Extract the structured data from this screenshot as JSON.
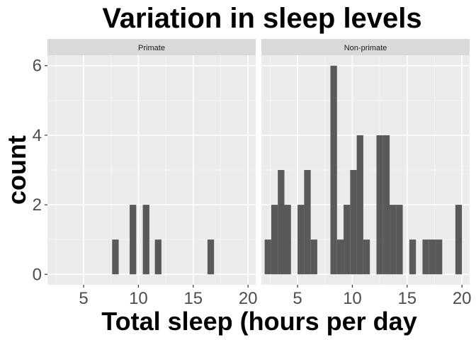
{
  "chart_data": {
    "type": "bar",
    "title": "Variation in sleep levels",
    "xlabel": "Total sleep (hours per day",
    "ylabel": "count",
    "xlim": [
      1.7,
      20.7
    ],
    "ylim": [
      -0.3,
      6.3
    ],
    "x_ticks": [
      5,
      10,
      15,
      20
    ],
    "y_ticks": [
      0,
      2,
      4,
      6
    ],
    "bin_width": 0.6,
    "grid": true,
    "bar_color": "#595959",
    "panel_bg": "#ebebeb",
    "strip_bg": "#d9d9d9",
    "panels": [
      {
        "name": "Primate",
        "bins": [
          {
            "x": 7.9,
            "count": 1
          },
          {
            "x": 9.5,
            "count": 2
          },
          {
            "x": 10.7,
            "count": 2
          },
          {
            "x": 11.8,
            "count": 1
          },
          {
            "x": 16.6,
            "count": 1
          }
        ]
      },
      {
        "name": "Non-primate",
        "bins": [
          {
            "x": 2.3,
            "count": 1
          },
          {
            "x": 2.9,
            "count": 2
          },
          {
            "x": 3.5,
            "count": 3
          },
          {
            "x": 4.1,
            "count": 2
          },
          {
            "x": 5.3,
            "count": 2
          },
          {
            "x": 5.9,
            "count": 3
          },
          {
            "x": 6.5,
            "count": 1
          },
          {
            "x": 8.3,
            "count": 6
          },
          {
            "x": 8.9,
            "count": 1
          },
          {
            "x": 9.5,
            "count": 2
          },
          {
            "x": 10.1,
            "count": 3
          },
          {
            "x": 10.7,
            "count": 4
          },
          {
            "x": 11.3,
            "count": 1
          },
          {
            "x": 12.5,
            "count": 4
          },
          {
            "x": 13.1,
            "count": 4
          },
          {
            "x": 13.7,
            "count": 2
          },
          {
            "x": 14.3,
            "count": 2
          },
          {
            "x": 15.5,
            "count": 1
          },
          {
            "x": 16.7,
            "count": 1
          },
          {
            "x": 17.3,
            "count": 1
          },
          {
            "x": 17.9,
            "count": 1
          },
          {
            "x": 19.7,
            "count": 2
          }
        ]
      }
    ]
  }
}
